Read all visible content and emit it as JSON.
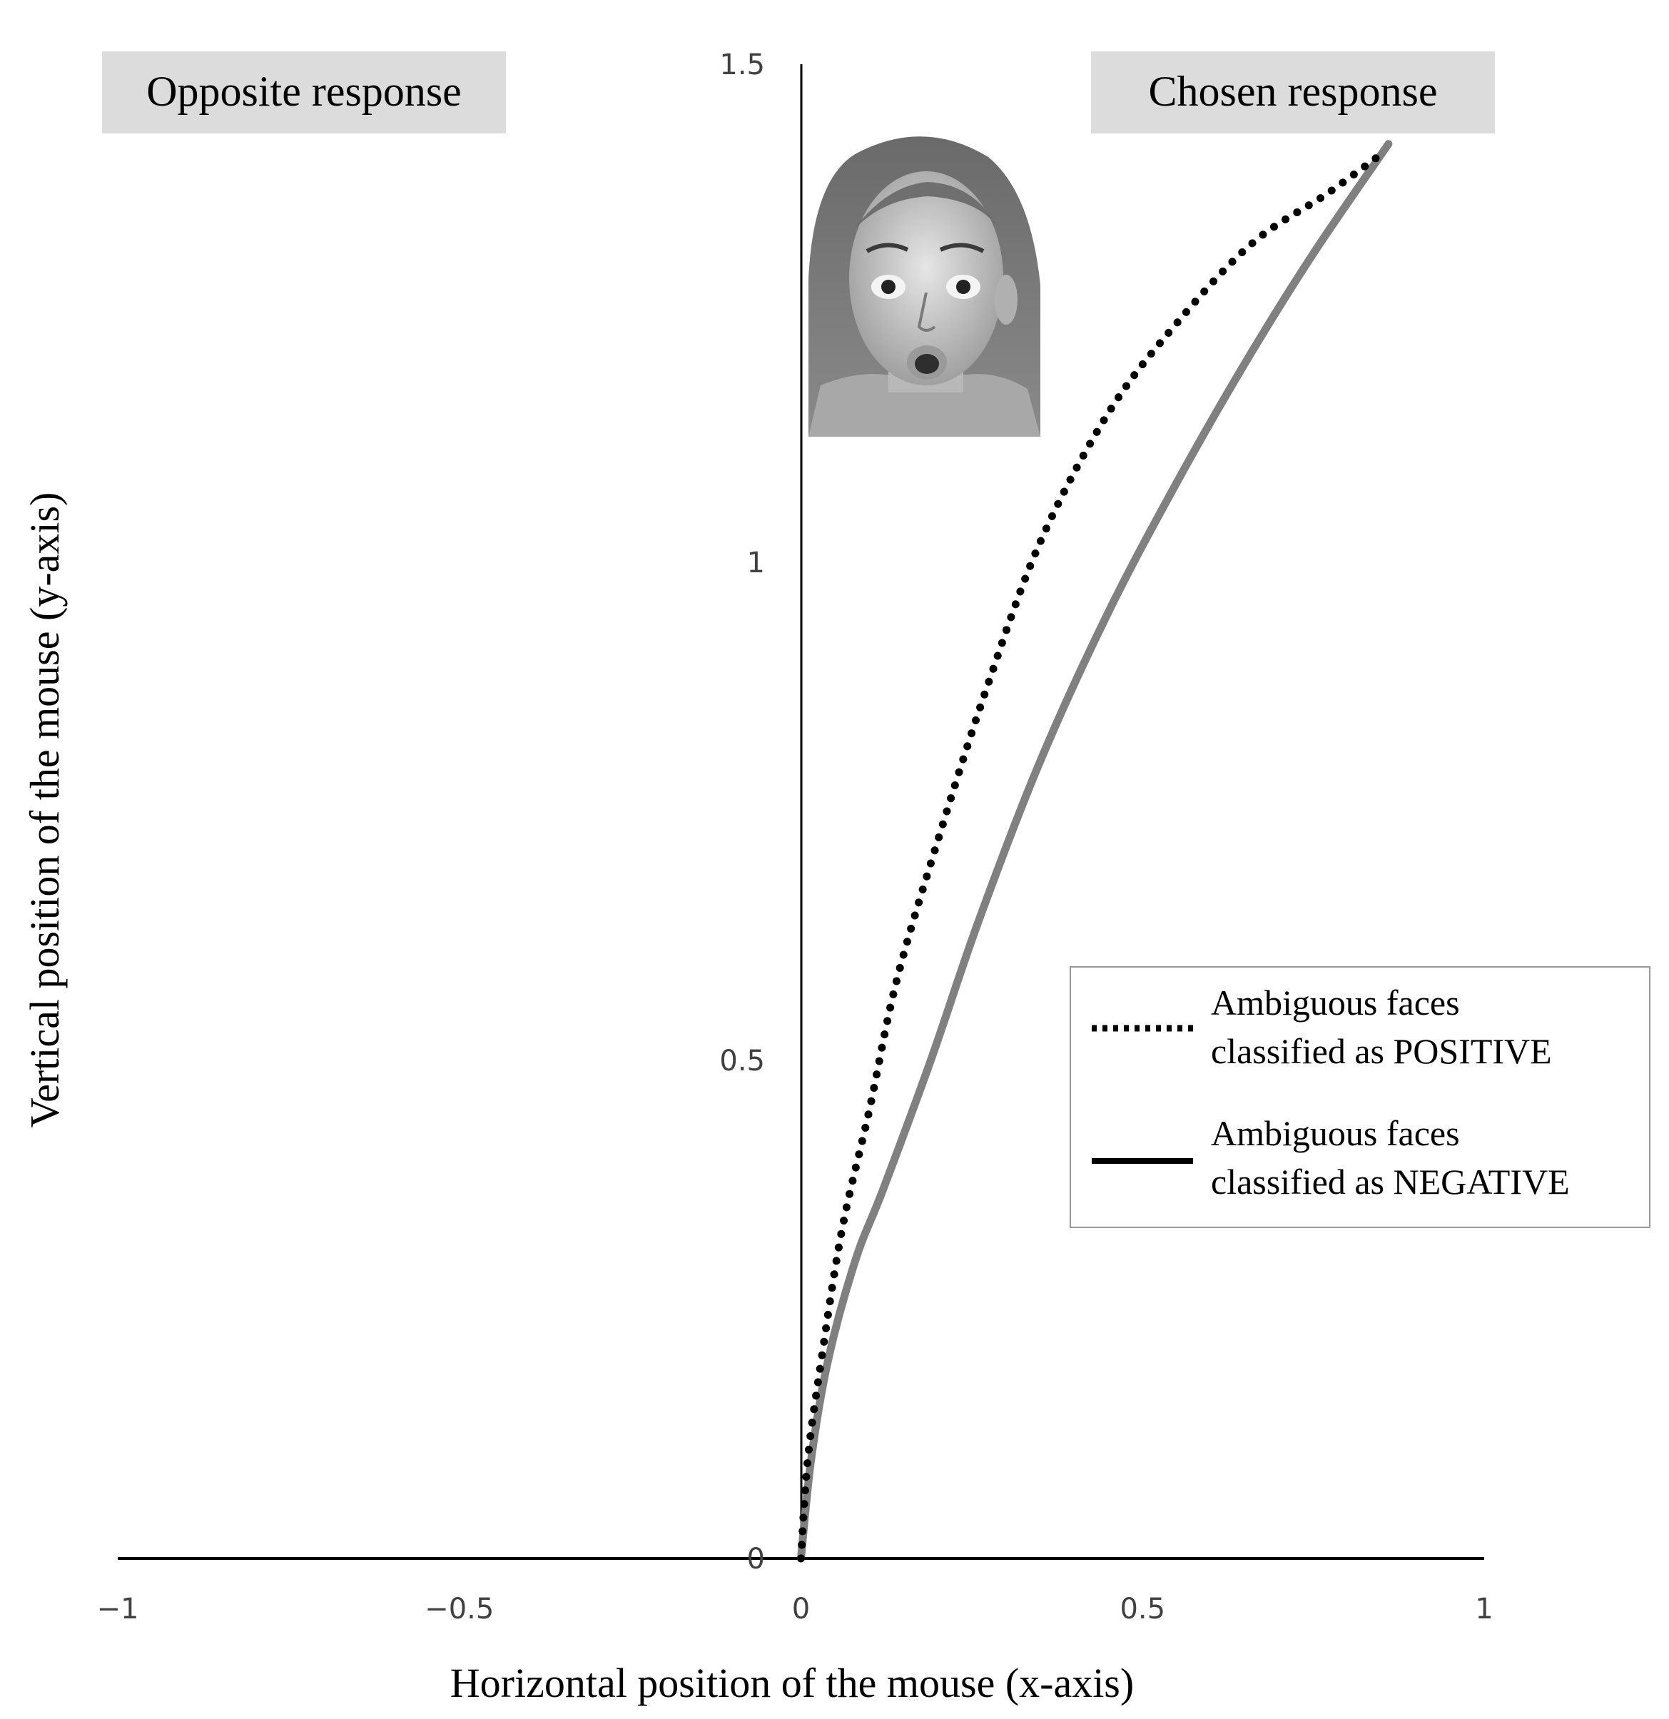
{
  "chart_data": {
    "type": "line",
    "title": "",
    "xlabel": "Horizontal position of the mouse (x-axis)",
    "ylabel": "Vertical position of the mouse (y-axis)",
    "xlim": [
      -1,
      1
    ],
    "ylim": [
      0,
      1.5
    ],
    "x_ticks": [
      {
        "value": -1,
        "label": "−1"
      },
      {
        "value": -0.5,
        "label": "−0.5"
      },
      {
        "value": 0,
        "label": "0"
      },
      {
        "value": 0.5,
        "label": "0.5"
      },
      {
        "value": 1,
        "label": "1"
      }
    ],
    "y_ticks": [
      {
        "value": 0,
        "label": "0"
      },
      {
        "value": 0.5,
        "label": "0.5"
      },
      {
        "value": 1,
        "label": "1"
      },
      {
        "value": 1.5,
        "label": "1.5"
      }
    ],
    "grid": false,
    "legend_position": "right",
    "annotations": {
      "left_box": "Opposite response",
      "right_box": "Chosen response",
      "image": "surprised-face-photo"
    },
    "series": [
      {
        "name": "Ambiguous faces classified as POSITIVE",
        "legend_lines": [
          "Ambiguous faces",
          "classified as POSITIVE"
        ],
        "style": "dotted",
        "color": "#000000",
        "points": [
          [
            0.0,
            0.0
          ],
          [
            0.01,
            0.1
          ],
          [
            0.03,
            0.2
          ],
          [
            0.06,
            0.33
          ],
          [
            0.1,
            0.45
          ],
          [
            0.14,
            0.58
          ],
          [
            0.2,
            0.72
          ],
          [
            0.27,
            0.87
          ],
          [
            0.35,
            1.02
          ],
          [
            0.45,
            1.15
          ],
          [
            0.55,
            1.24
          ],
          [
            0.66,
            1.32
          ],
          [
            0.77,
            1.37
          ],
          [
            0.85,
            1.41
          ]
        ]
      },
      {
        "name": "Ambiguous faces classified as NEGATIVE",
        "legend_lines": [
          "Ambiguous faces",
          "classified as NEGATIVE"
        ],
        "style": "solid",
        "color": "#808080",
        "legend_color": "#000000",
        "points": [
          [
            0.0,
            0.0
          ],
          [
            0.015,
            0.1
          ],
          [
            0.04,
            0.2
          ],
          [
            0.08,
            0.3
          ],
          [
            0.12,
            0.37
          ],
          [
            0.19,
            0.5
          ],
          [
            0.26,
            0.64
          ],
          [
            0.35,
            0.8
          ],
          [
            0.45,
            0.95
          ],
          [
            0.55,
            1.08
          ],
          [
            0.65,
            1.2
          ],
          [
            0.75,
            1.31
          ],
          [
            0.86,
            1.42
          ]
        ]
      }
    ]
  },
  "colors": {
    "axis": "#000000",
    "box_fill": "#dcdcdc",
    "tick_text": "#404040",
    "legend_border": "#999999"
  }
}
